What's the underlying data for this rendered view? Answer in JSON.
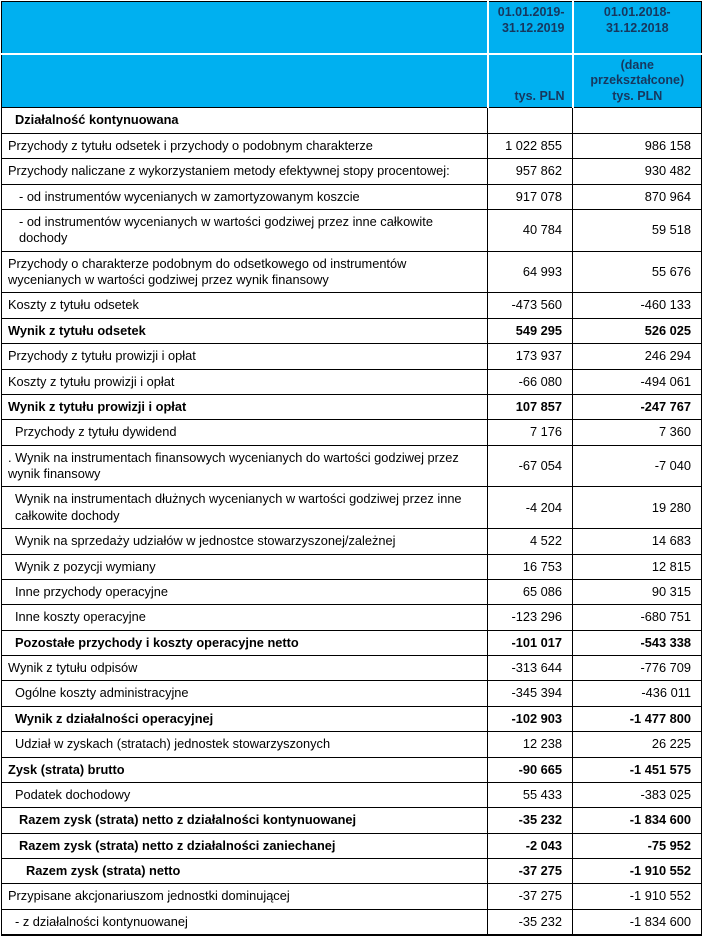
{
  "header": {
    "corner": "",
    "period_2019": "01.01.2019-\n31.12.2019",
    "period_2018": "01.01.2018-\n31.12.2018",
    "unit_corner": "",
    "unit_2019": "tys. PLN",
    "unit_2018": "(dane\nprzekształcone)\ntys. PLN",
    "bg_color": "#00b0f0",
    "text_color": "#17375e"
  },
  "rows": [
    {
      "label": "Działalność kontynuowana",
      "v2019": "",
      "v2018": "",
      "bold": true,
      "indent": 1
    },
    {
      "label": "Przychody z tytułu odsetek i przychody o podobnym charakterze",
      "v2019": "1 022 855",
      "v2018": "986 158",
      "bold": false,
      "indent": 0
    },
    {
      "label": "Przychody naliczane z wykorzystaniem metody efektywnej stopy procentowej:",
      "v2019": "957 862",
      "v2018": "930 482",
      "bold": false,
      "indent": 0
    },
    {
      "label": "- od instrumentów wycenianych w zamortyzowanym koszcie",
      "v2019": "917 078",
      "v2018": "870 964",
      "bold": false,
      "indent": 2
    },
    {
      "label": "- od instrumentów wycenianych w wartości godziwej przez inne całkowite dochody",
      "v2019": "40 784",
      "v2018": "59 518",
      "bold": false,
      "indent": 2
    },
    {
      "label": "Przychody o charakterze podobnym do odsetkowego od instrumentów wycenianych w wartości godziwej przez wynik finansowy",
      "v2019": "64 993",
      "v2018": "55 676",
      "bold": false,
      "indent": 0
    },
    {
      "label": "Koszty z tytułu odsetek",
      "v2019": "-473 560",
      "v2018": "-460 133",
      "bold": false,
      "indent": 0
    },
    {
      "label": "Wynik z tytułu odsetek",
      "v2019": "549 295",
      "v2018": "526 025",
      "bold": true,
      "indent": 0
    },
    {
      "label": "Przychody z tytułu prowizji i opłat",
      "v2019": "173 937",
      "v2018": "246 294",
      "bold": false,
      "indent": 0
    },
    {
      "label": "Koszty z tytułu prowizji i opłat",
      "v2019": "-66 080",
      "v2018": "-494 061",
      "bold": false,
      "indent": 0
    },
    {
      "label": "Wynik z tytułu prowizji i opłat",
      "v2019": "107 857",
      "v2018": "-247 767",
      "bold": true,
      "indent": 0
    },
    {
      "label": "Przychody z tytułu dywidend",
      "v2019": "7 176",
      "v2018": "7 360",
      "bold": false,
      "indent": 1
    },
    {
      "label": ". Wynik na instrumentach finansowych wycenianych do wartości godziwej przez wynik finansowy",
      "v2019": "-67 054",
      "v2018": "-7 040",
      "bold": false,
      "indent": 0
    },
    {
      "label": "Wynik na instrumentach dłużnych wycenianych w wartości godziwej przez inne całkowite dochody",
      "v2019": "-4 204",
      "v2018": "19 280",
      "bold": false,
      "indent": 1
    },
    {
      "label": "Wynik na sprzedaży udziałów w jednostce stowarzyszonej/zależnej",
      "v2019": "4 522",
      "v2018": "14 683",
      "bold": false,
      "indent": 1
    },
    {
      "label": "Wynik z pozycji wymiany",
      "v2019": "16 753",
      "v2018": "12 815",
      "bold": false,
      "indent": 1
    },
    {
      "label": "Inne przychody operacyjne",
      "v2019": "65 086",
      "v2018": "90 315",
      "bold": false,
      "indent": 1
    },
    {
      "label": "Inne koszty operacyjne",
      "v2019": "-123 296",
      "v2018": "-680 751",
      "bold": false,
      "indent": 1
    },
    {
      "label": "Pozostałe przychody i koszty operacyjne netto",
      "v2019": "-101 017",
      "v2018": "-543 338",
      "bold": true,
      "indent": 1
    },
    {
      "label": "Wynik z tytułu odpisów",
      "v2019": "-313 644",
      "v2018": "-776 709",
      "bold": false,
      "indent": 0
    },
    {
      "label": "Ogólne koszty administracyjne",
      "v2019": "-345 394",
      "v2018": "-436 011",
      "bold": false,
      "indent": 1
    },
    {
      "label": "Wynik z działalności operacyjnej",
      "v2019": "-102 903",
      "v2018": "-1 477 800",
      "bold": true,
      "indent": 1
    },
    {
      "label": "Udział w zyskach (stratach) jednostek stowarzyszonych",
      "v2019": "12 238",
      "v2018": "26 225",
      "bold": false,
      "indent": 1
    },
    {
      "label": "Zysk (strata) brutto",
      "v2019": "-90 665",
      "v2018": "-1 451 575",
      "bold": true,
      "indent": 0
    },
    {
      "label": "Podatek dochodowy",
      "v2019": "55 433",
      "v2018": "-383 025",
      "bold": false,
      "indent": 1
    },
    {
      "label": "Razem zysk (strata) netto z działalności kontynuowanej",
      "v2019": "-35 232",
      "v2018": "-1 834 600",
      "bold": true,
      "indent": 2
    },
    {
      "label": "Razem zysk (strata) netto z działalności zaniechanej",
      "v2019": "-2 043",
      "v2018": "-75 952",
      "bold": true,
      "indent": 2
    },
    {
      "label": "Razem zysk (strata) netto",
      "v2019": "-37 275",
      "v2018": "-1 910 552",
      "bold": true,
      "indent": 3
    },
    {
      "label": "Przypisane akcjonariuszom jednostki dominującej",
      "v2019": "-37 275",
      "v2018": "-1 910 552",
      "bold": false,
      "indent": 0
    },
    {
      "label": "- z działalności kontynuowanej",
      "v2019": "-35 232",
      "v2018": "-1 834 600",
      "bold": false,
      "indent": 1
    }
  ]
}
